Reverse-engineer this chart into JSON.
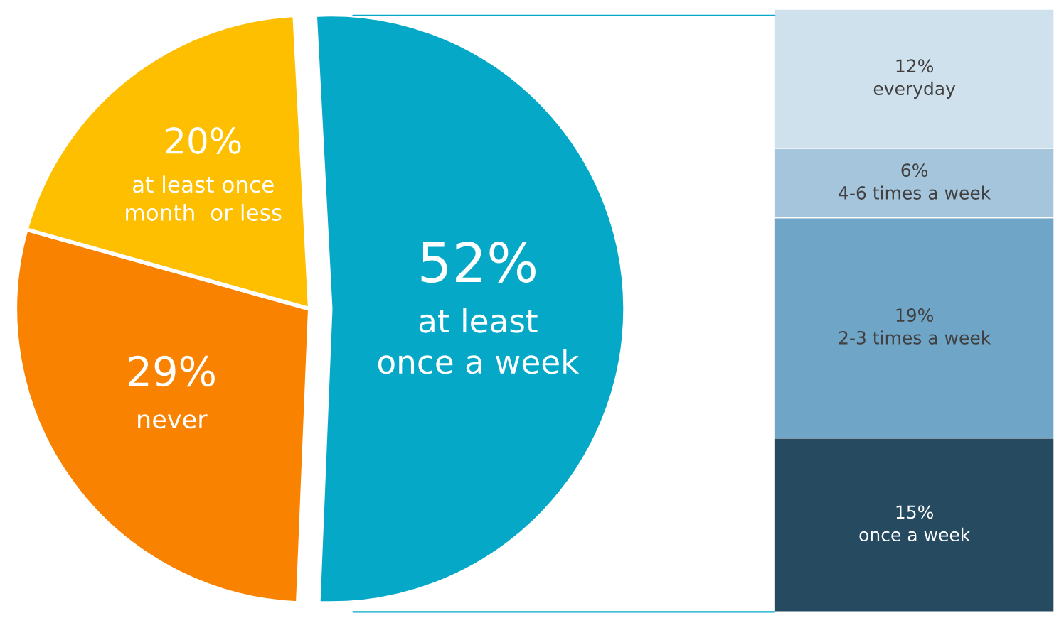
{
  "chart_data": [
    {
      "type": "pie",
      "categories": [
        "at least\nonce a week",
        "never",
        "at least once\nmonth  or less"
      ],
      "values": [
        52,
        29,
        20
      ],
      "value_labels": [
        "52%",
        "29%",
        "20%"
      ],
      "colors": [
        "#05a9c7",
        "#f98200",
        "#fdbf00"
      ]
    },
    {
      "type": "bar",
      "stacked": true,
      "categories": [
        null
      ],
      "ylim": [
        0,
        52
      ],
      "tick_labels": false,
      "series": [
        {
          "name": "once a week",
          "color": "#264a60",
          "values": [
            15
          ],
          "value_labels": [
            "15%"
          ]
        },
        {
          "name": "2-3 times a week",
          "color": "#6fa5c7",
          "values": [
            19
          ],
          "value_labels": [
            "19%"
          ]
        },
        {
          "name": "4-6 times a week",
          "color": "#a5c5dc",
          "values": [
            6
          ],
          "value_labels": [
            "6%"
          ]
        },
        {
          "name": "everyday",
          "color": "#d0e1ee",
          "values": [
            12
          ],
          "value_labels": [
            "12%"
          ]
        }
      ]
    }
  ]
}
